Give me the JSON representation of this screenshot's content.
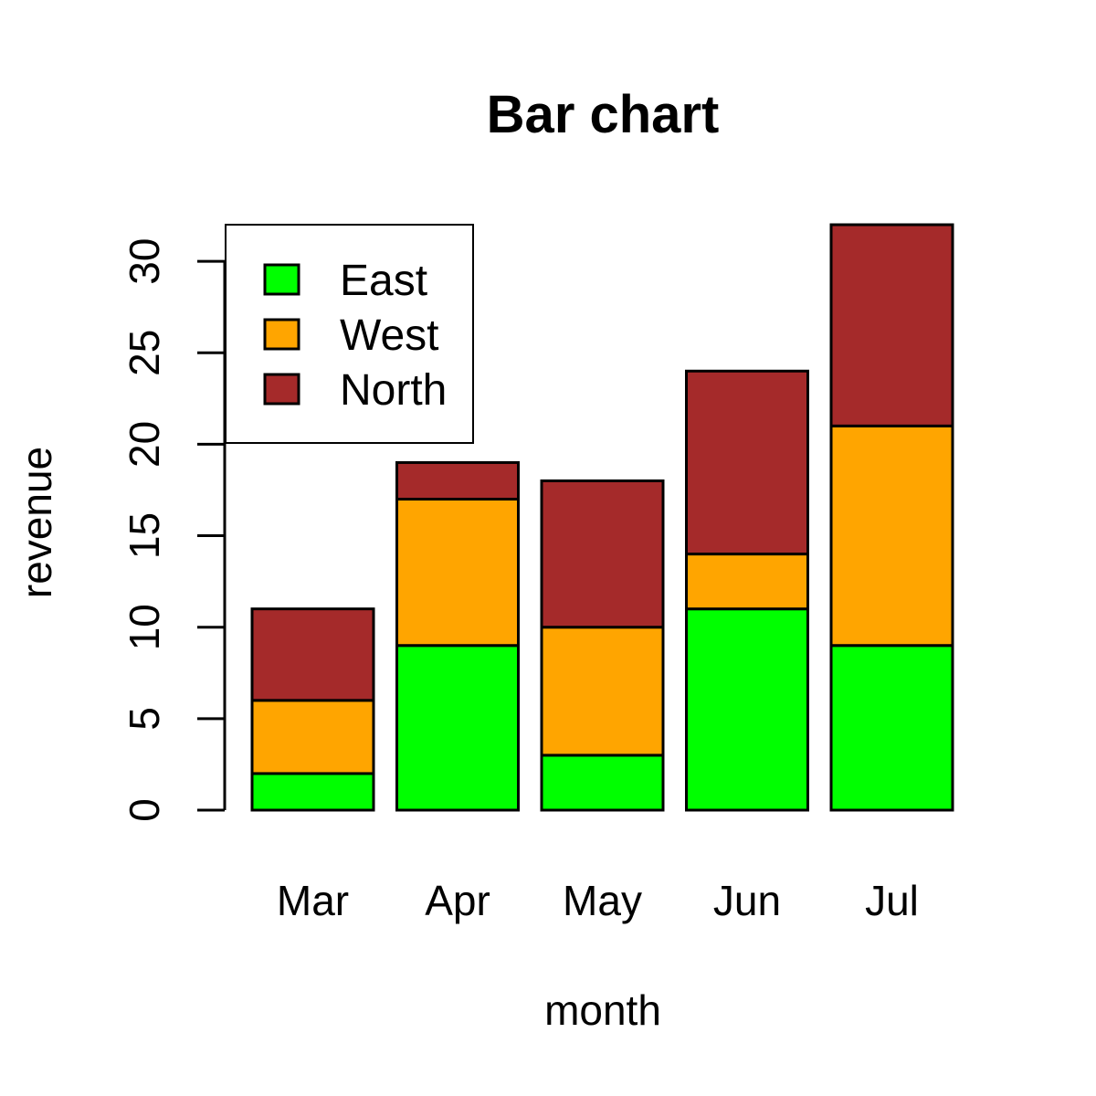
{
  "chart_data": {
    "type": "bar",
    "stacked": true,
    "title": "Bar chart",
    "xlabel": "month",
    "ylabel": "revenue",
    "categories": [
      "Mar",
      "Apr",
      "May",
      "Jun",
      "Jul"
    ],
    "series": [
      {
        "name": "East",
        "color": "#00ff00",
        "values": [
          2,
          9,
          3,
          11,
          9
        ]
      },
      {
        "name": "West",
        "color": "#ffa500",
        "values": [
          4,
          8,
          7,
          3,
          12
        ]
      },
      {
        "name": "North",
        "color": "#a52a2a",
        "values": [
          5,
          2,
          8,
          10,
          11
        ]
      }
    ],
    "ylim": [
      0,
      32
    ],
    "yticks": [
      "0",
      "5",
      "10",
      "15",
      "20",
      "25",
      "30"
    ],
    "grid": false,
    "legend": {
      "position": "top-left",
      "entries": [
        "East",
        "West",
        "North"
      ]
    }
  }
}
